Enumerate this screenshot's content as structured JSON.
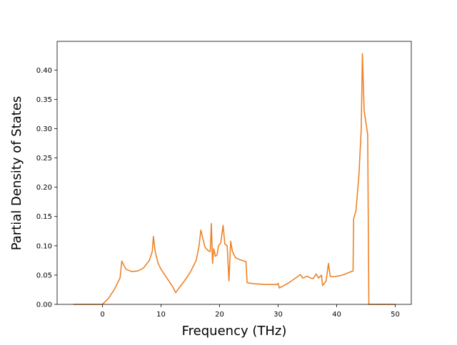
{
  "chart_data": {
    "type": "line",
    "xlabel": "Frequency (THz)",
    "ylabel": "Partial Density of States",
    "xlim": [
      -7.75,
      52.75
    ],
    "ylim": [
      0,
      0.449
    ],
    "xticks": [
      0,
      10,
      20,
      30,
      40,
      50
    ],
    "yticks": [
      {
        "value": 0,
        "label": "0.00"
      },
      {
        "value": 0.05,
        "label": "0.05"
      },
      {
        "value": 0.1,
        "label": "0.10"
      },
      {
        "value": 0.15,
        "label": "0.15"
      },
      {
        "value": 0.2,
        "label": "0.20"
      },
      {
        "value": 0.25,
        "label": "0.25"
      },
      {
        "value": 0.3,
        "label": "0.30"
      },
      {
        "value": 0.35,
        "label": "0.35"
      },
      {
        "value": 0.4,
        "label": "0.40"
      }
    ],
    "grid": false,
    "x": [
      -5,
      0,
      1,
      2,
      3,
      3.3,
      4,
      5,
      6,
      7,
      8,
      8.5,
      8.7,
      9,
      9.5,
      10,
      11,
      12,
      12.5,
      13,
      14,
      15,
      16,
      16.5,
      16.8,
      17.2,
      17.5,
      18,
      18.4,
      18.6,
      18.8,
      19,
      19.3,
      19.6,
      19.8,
      20.2,
      20.6,
      20.9,
      21.3,
      21.6,
      21.9,
      22.2,
      22.7,
      23.5,
      24.5,
      24.7,
      26,
      28,
      29.8,
      30,
      30.2,
      31,
      32,
      33,
      33.8,
      34.2,
      35,
      35.5,
      36,
      36.5,
      36.9,
      37.4,
      37.6,
      38.2,
      38.6,
      38.9,
      39.5,
      40,
      41,
      42,
      42.8,
      42.9,
      43.3,
      43.8,
      44.2,
      44.4,
      44.7,
      45,
      45.3,
      45.5,
      46,
      50
    ],
    "series": [
      {
        "color": "#ee8226",
        "values": [
          0,
          0,
          0.01,
          0.025,
          0.045,
          0.074,
          0.06,
          0.056,
          0.057,
          0.062,
          0.075,
          0.09,
          0.116,
          0.09,
          0.07,
          0.06,
          0.045,
          0.03,
          0.02,
          0.027,
          0.04,
          0.055,
          0.075,
          0.1,
          0.127,
          0.11,
          0.098,
          0.092,
          0.09,
          0.138,
          0.07,
          0.095,
          0.082,
          0.085,
          0.1,
          0.105,
          0.135,
          0.103,
          0.1,
          0.04,
          0.108,
          0.09,
          0.08,
          0.076,
          0.073,
          0.037,
          0.035,
          0.034,
          0.034,
          0.036,
          0.028,
          0.032,
          0.038,
          0.045,
          0.051,
          0.045,
          0.048,
          0.045,
          0.044,
          0.052,
          0.045,
          0.05,
          0.032,
          0.04,
          0.07,
          0.048,
          0.047,
          0.048,
          0.05,
          0.054,
          0.057,
          0.146,
          0.16,
          0.22,
          0.3,
          0.428,
          0.33,
          0.31,
          0.29,
          0,
          0,
          0
        ]
      }
    ]
  }
}
